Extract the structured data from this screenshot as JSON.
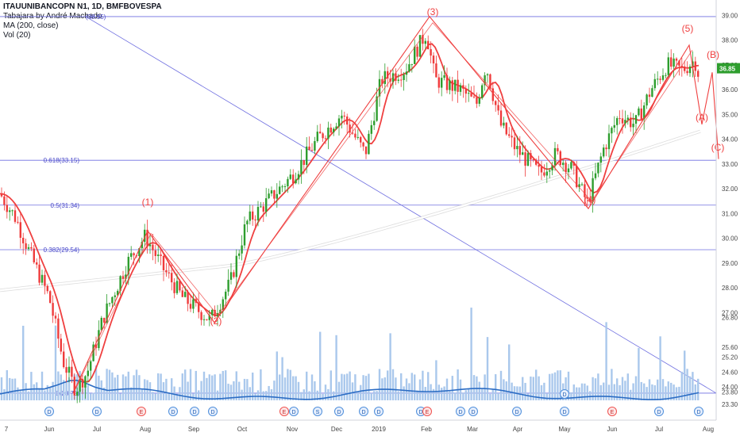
{
  "legend": {
    "symbol": "ITAUUNIBANCOPN N1, 1D, BMFBOVESPA",
    "author": "Tabajara by André Machado",
    "ma": "MA (200, close)",
    "vol": "Vol (20)"
  },
  "colors": {
    "up": "#26a69a",
    "up_candle": "#2e9e2e",
    "down": "#ef3b3b",
    "ma200": "#ffffff",
    "ma_red": "#ef4040",
    "ma_green": "#3a9a3a",
    "fib": "#6f6fe0",
    "wave": "#ef4040",
    "volume": "#aac8ec",
    "vol_ma": "#2b6cc4",
    "price_badge": "#2e9e2e"
  },
  "chart_data": {
    "type": "candlestick",
    "title": "ITAUUNIBANCOPN N1, 1D, BMFBOVESPA",
    "x_ticks": [
      "7",
      "Jun",
      "Jul",
      "Aug",
      "Sep",
      "Oct",
      "Nov",
      "Dec",
      "2019",
      "Feb",
      "Mar",
      "Apr",
      "May",
      "Jun",
      "Jul",
      "Aug"
    ],
    "y_ticks": [
      "39.00",
      "38.00",
      "37.00",
      "36.00",
      "35.00",
      "34.00",
      "33.00",
      "32.00",
      "31.00",
      "30.00",
      "29.00",
      "28.00",
      "27.00",
      "26.80",
      "25.60",
      "25.20",
      "24.60",
      "24.00",
      "23.80",
      "23.30"
    ],
    "ylim": [
      23.3,
      39.3
    ],
    "last_price": "36.85",
    "fib_levels": [
      {
        "label": "(38.95)",
        "value": 38.95
      },
      {
        "label": "0.618(33.15)",
        "value": 33.15
      },
      {
        "label": "0.5(31.34)",
        "value": 31.34
      },
      {
        "label": "0.382(29.54)",
        "value": 29.54
      },
      {
        "label": "0(23.75)",
        "value": 23.75
      }
    ],
    "wave_labels": [
      "(1)",
      "(2)",
      "(3)",
      "(4)",
      "(5)",
      "(A)",
      "(B)",
      "(C)"
    ],
    "wave_points": [
      {
        "label": "0",
        "x": "Jun",
        "y": 23.75
      },
      {
        "label": "(1)",
        "x": "Aug",
        "y": 30.3
      },
      {
        "label": "(2)",
        "x": "Sep",
        "y": 26.6
      },
      {
        "label": "(3)",
        "x": "Feb",
        "y": 38.95
      },
      {
        "label": "(4)",
        "x": "May",
        "y": 31.2
      },
      {
        "label": "(5)",
        "x": "Jul",
        "y": 37.8
      },
      {
        "label": "(A)",
        "x": "Jul",
        "y": 34.6
      },
      {
        "label": "(B)",
        "x": "Aug",
        "y": 36.7
      },
      {
        "label": "(C)",
        "x": "Aug",
        "y": 33.2
      }
    ],
    "event_markers": [
      "D",
      "D",
      "E",
      "D",
      "D",
      "D",
      "E",
      "D",
      "S",
      "D",
      "D",
      "D",
      "D",
      "E",
      "D",
      "D",
      "D",
      "D",
      "E",
      "D",
      "D",
      "E",
      "D",
      "E"
    ],
    "series": [
      {
        "name": "MA (200, close)",
        "key": "ma200"
      },
      {
        "name": "Vol (20)",
        "key": "vol_ma"
      }
    ]
  }
}
